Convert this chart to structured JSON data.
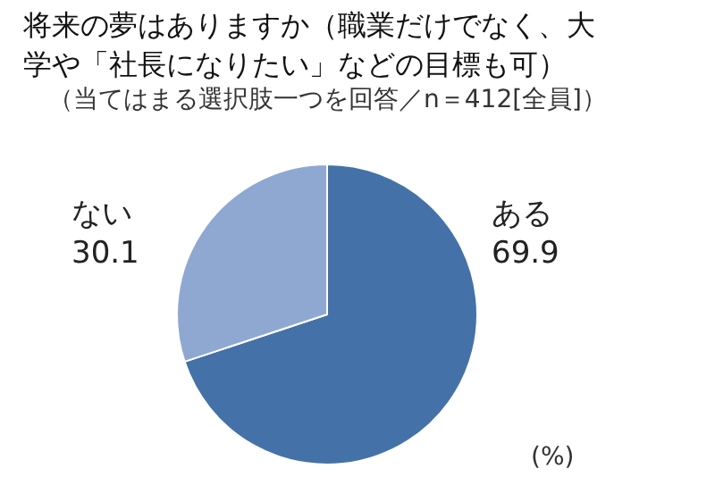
{
  "chart_data": {
    "type": "pie",
    "title": "将来の夢はありますか（職業だけでなく、大学や「社長になりたい」などの目標も可）",
    "subtitle": "（当てはまる選択肢一つを回答／n＝412[全員]）",
    "categories": [
      "ある",
      "ない"
    ],
    "values": [
      69.9,
      30.1
    ],
    "colors": [
      "#4472a8",
      "#8fa8d2"
    ],
    "data_labels": true,
    "legend": false,
    "annotations": [
      "(%)"
    ]
  }
}
